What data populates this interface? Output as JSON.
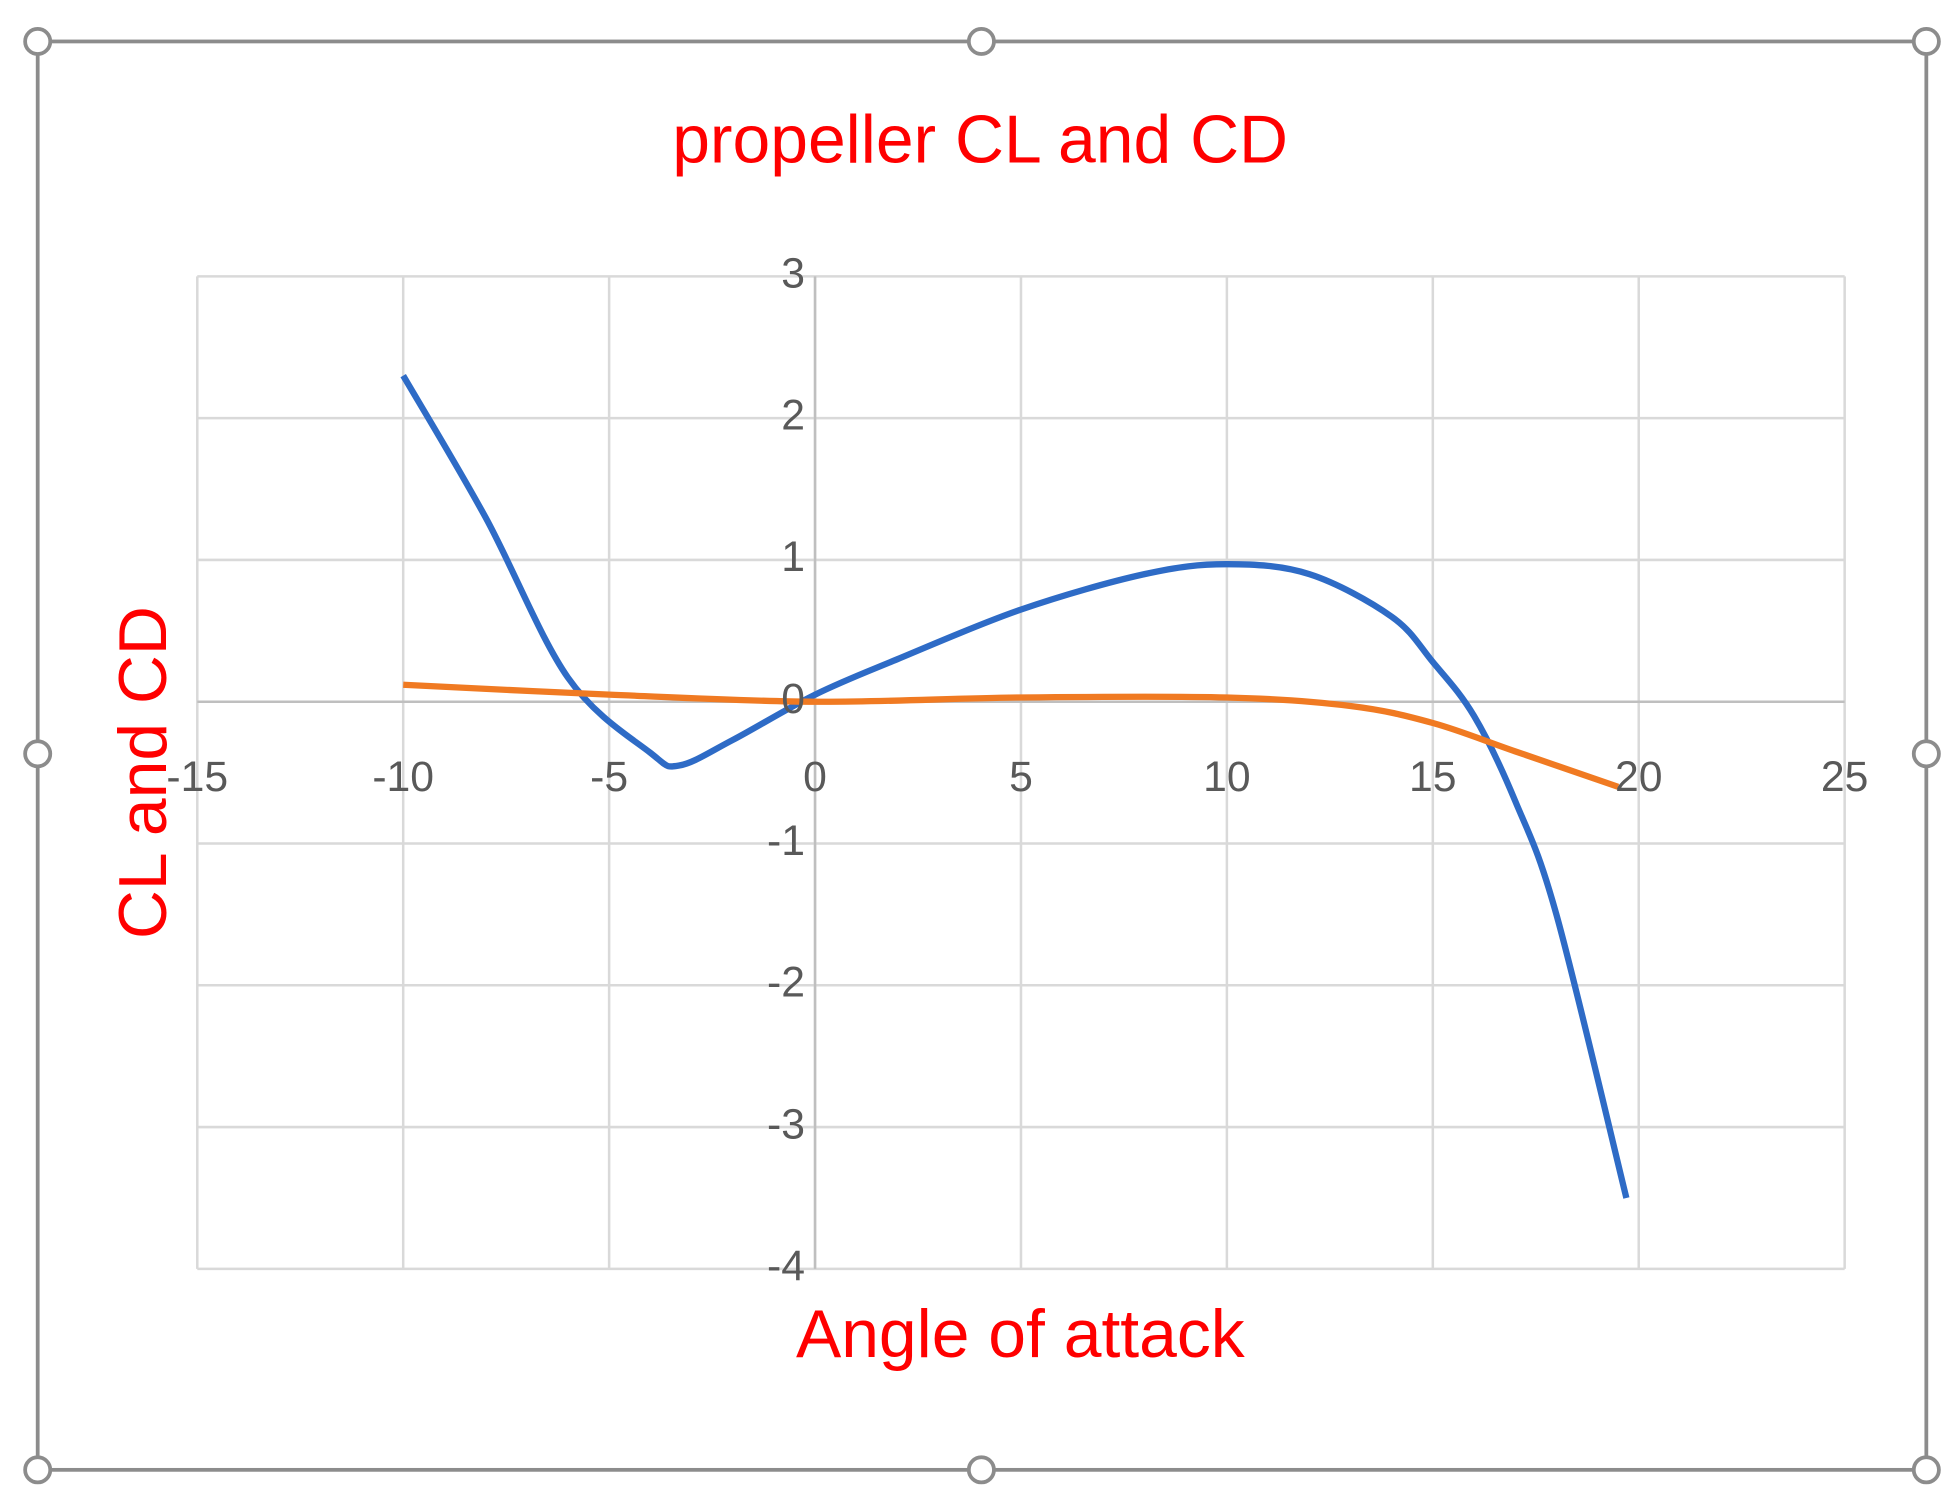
{
  "chart_data": {
    "type": "line",
    "title": "propeller CL and CD",
    "x_label": "Angle of attack",
    "y_label": "CL and CD",
    "xlim": [
      -15,
      25
    ],
    "xticks": [
      -15,
      -10,
      -5,
      0,
      5,
      10,
      15,
      20,
      25
    ],
    "ylim": [
      -4,
      3
    ],
    "yticks": [
      -4,
      -3,
      -2,
      -1,
      0,
      1,
      2,
      3
    ],
    "grid": true,
    "series": [
      {
        "name": "CL",
        "color": "#2e6bc6",
        "x": [
          -10,
          -8,
          -6,
          -4,
          -3.3,
          -2,
          0,
          2,
          5,
          8,
          10,
          12,
          14,
          15,
          16,
          17,
          18,
          19.7
        ],
        "values": [
          2.3,
          1.3,
          0.17,
          -0.36,
          -0.45,
          -0.27,
          0.05,
          0.3,
          0.65,
          0.9,
          0.97,
          0.9,
          0.6,
          0.28,
          -0.1,
          -0.7,
          -1.5,
          -3.5
        ]
      },
      {
        "name": "CD",
        "color": "#f07a22",
        "x": [
          -10,
          -5,
          0,
          5,
          10,
          13,
          15,
          17,
          19.5
        ],
        "values": [
          0.12,
          0.05,
          0.0,
          0.03,
          0.03,
          -0.03,
          -0.15,
          -0.35,
          -0.6
        ]
      }
    ]
  }
}
